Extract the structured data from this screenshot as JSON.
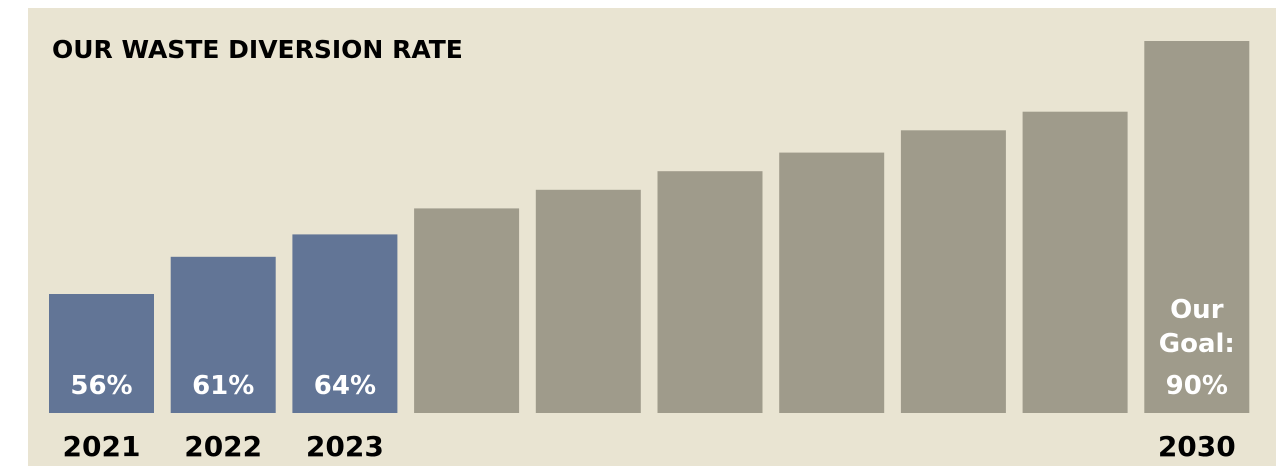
{
  "chart_data": {
    "type": "bar",
    "title": "OUR WASTE DIVERSION RATE",
    "categories": [
      "2021",
      "2022",
      "2023",
      "",
      "",
      "",
      "",
      "",
      "",
      "2030"
    ],
    "values": [
      56,
      61,
      64,
      67.5,
      70,
      72.5,
      75,
      78,
      80.5,
      90
    ],
    "value_labels": [
      "56%",
      "61%",
      "64%",
      null,
      null,
      null,
      null,
      null,
      null,
      "90%"
    ],
    "goal_label_lines": [
      "Our",
      "Goal:"
    ],
    "ylim": [
      40,
      90
    ],
    "grid": false,
    "colors": {
      "background": "#e9e4d2",
      "actual": "#627596",
      "projected": "#9f9b8b",
      "text_dark": "#000000",
      "text_light": "#ffffff"
    },
    "actual_count": 3
  }
}
